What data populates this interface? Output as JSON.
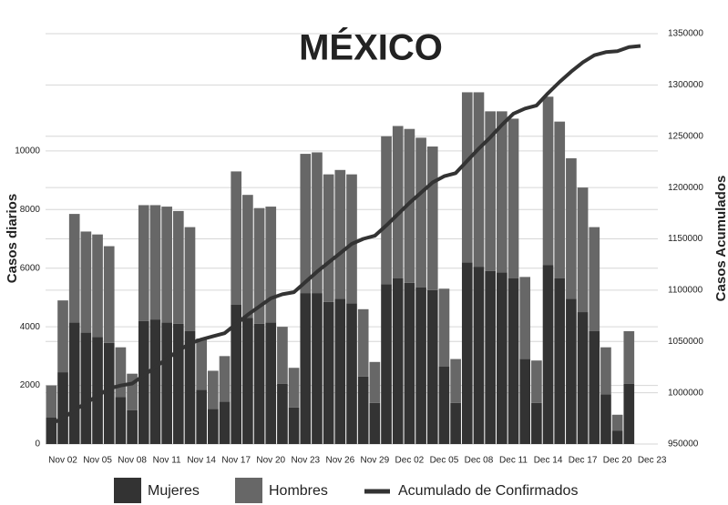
{
  "chart_data": {
    "type": "bar",
    "title": "MÉXICO",
    "y_label": "Casos diarios",
    "y2_label": "Casos Acumulados",
    "categories": [
      null,
      "Nov 02",
      null,
      null,
      "Nov 05",
      null,
      null,
      "Nov 08",
      null,
      null,
      "Nov 11",
      null,
      null,
      "Nov 14",
      null,
      null,
      "Nov 17",
      null,
      null,
      "Nov 20",
      null,
      null,
      "Nov 23",
      null,
      null,
      "Nov 26",
      null,
      null,
      "Nov 29",
      null,
      null,
      "Dec 02",
      null,
      null,
      "Dec 05",
      null,
      null,
      "Dec 08",
      null,
      null,
      "Dec 11",
      null,
      null,
      "Dec 14",
      null,
      null,
      "Dec 17",
      null,
      null,
      "Dec 20",
      null,
      null,
      "Dec 23"
    ],
    "stacked": true,
    "series": [
      {
        "name": "Mujeres",
        "color": "#333333",
        "values": [
          900,
          2450,
          4150,
          3800,
          3650,
          3450,
          1600,
          1150,
          4200,
          4250,
          4150,
          4100,
          3850,
          1850,
          1200,
          1450,
          4750,
          4300,
          4100,
          4150,
          2050,
          1250,
          5150,
          5150,
          4850,
          4950,
          4800,
          2300,
          1400,
          5450,
          5650,
          5500,
          5350,
          5250,
          2650,
          1400,
          6200,
          6050,
          5900,
          5850,
          5650,
          2900,
          1400,
          6100,
          5650,
          4950,
          4500,
          3850,
          1700,
          450,
          2050,
          null,
          null
        ]
      },
      {
        "name": "Hombres",
        "color": "#676767",
        "values": [
          1100,
          2450,
          3700,
          3450,
          3500,
          3300,
          1700,
          1250,
          3950,
          3900,
          3950,
          3850,
          3550,
          1750,
          1300,
          1550,
          4550,
          4200,
          3950,
          3950,
          1950,
          1350,
          4750,
          4800,
          4350,
          4400,
          4400,
          2300,
          1400,
          5050,
          5200,
          5250,
          5100,
          4900,
          2650,
          1500,
          5800,
          5950,
          5450,
          5500,
          5450,
          2800,
          1450,
          5750,
          5350,
          4800,
          4250,
          3550,
          1600,
          550,
          1800,
          null,
          null
        ]
      },
      {
        "name": "Acumulado de Confirmados",
        "type": "line",
        "axis": "y2",
        "color": "#333333",
        "values": [
          970000,
          975000,
          983000,
          990000,
          997000,
          1004000,
          1007000,
          1009000,
          1017000,
          1025000,
          1033000,
          1041000,
          1048000,
          1052000,
          1055000,
          1058000,
          1067000,
          1076000,
          1084000,
          1092000,
          1096000,
          1098000,
          1108000,
          1118000,
          1127000,
          1136000,
          1145000,
          1150000,
          1153000,
          1163000,
          1174000,
          1185000,
          1195000,
          1205000,
          1211000,
          1214000,
          1226000,
          1238000,
          1249000,
          1261000,
          1272000,
          1277000,
          1280000,
          1292000,
          1303000,
          1313000,
          1322000,
          1329000,
          1332000,
          1333000,
          1337000,
          1338000,
          null
        ]
      }
    ],
    "ylim": [
      0,
      14000
    ],
    "yticks": [
      0,
      2000,
      4000,
      6000,
      8000,
      10000
    ],
    "y2lim": [
      950000,
      1350000
    ],
    "y2ticks": [
      950000,
      1000000,
      1050000,
      1100000,
      1150000,
      1200000,
      1250000,
      1300000,
      1350000
    ],
    "grid": true,
    "legend": "bottom"
  }
}
